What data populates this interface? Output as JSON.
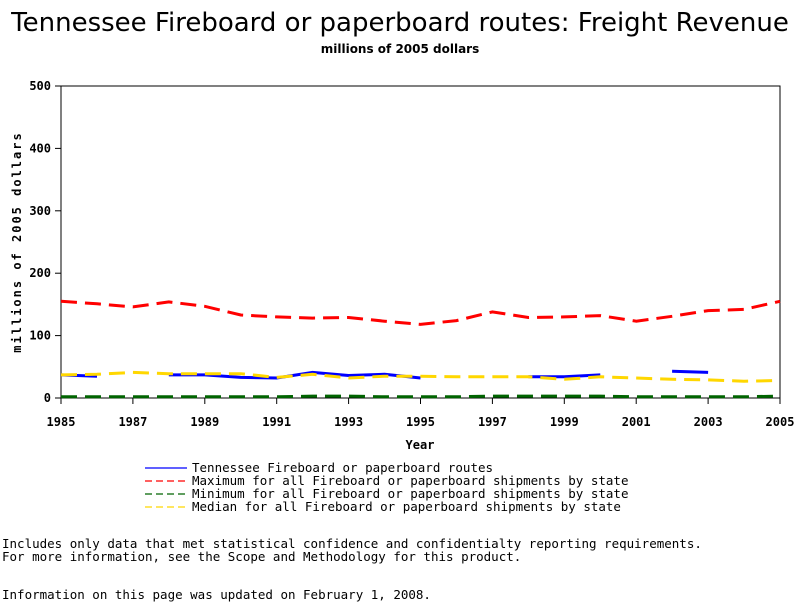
{
  "chart_data": {
    "type": "line",
    "title": "Tennessee Fireboard or paperboard routes: Freight Revenue",
    "subtitle": "millions of 2005 dollars",
    "xlabel": "Year",
    "ylabel": "millions of 2005 dollars",
    "xlim": [
      1985,
      2005
    ],
    "ylim": [
      0,
      500
    ],
    "x_ticks": [
      "1985",
      "1987",
      "1989",
      "1991",
      "1993",
      "1995",
      "1997",
      "1999",
      "2001",
      "2003",
      "2005"
    ],
    "y_ticks": [
      "0",
      "100",
      "200",
      "300",
      "400",
      "500"
    ],
    "grid": false,
    "legend_position": "bottom",
    "series": [
      {
        "name": "Tennessee Fireboard or paperboard routes",
        "color": "#0000ff",
        "style": "solid",
        "points": [
          [
            1985,
            37
          ],
          [
            1986,
            35
          ],
          [
            1988,
            37
          ],
          [
            1989,
            37
          ],
          [
            1990,
            33
          ],
          [
            1991,
            32
          ],
          [
            1992,
            41
          ],
          [
            1993,
            36
          ],
          [
            1994,
            38
          ],
          [
            1995,
            32
          ],
          [
            1998,
            34
          ],
          [
            1999,
            34
          ],
          [
            2000,
            37
          ],
          [
            2002,
            43
          ],
          [
            2003,
            41
          ]
        ]
      },
      {
        "name": "Maximum for all Fireboard or paperboard shipments by state",
        "color": "#ff0000",
        "style": "dashed",
        "points": [
          [
            1985,
            155
          ],
          [
            1986,
            151
          ],
          [
            1987,
            146
          ],
          [
            1988,
            154
          ],
          [
            1989,
            147
          ],
          [
            1990,
            133
          ],
          [
            1991,
            130
          ],
          [
            1992,
            128
          ],
          [
            1993,
            129
          ],
          [
            1994,
            123
          ],
          [
            1995,
            118
          ],
          [
            1996,
            124
          ],
          [
            1997,
            138
          ],
          [
            1998,
            129
          ],
          [
            1999,
            130
          ],
          [
            2000,
            132
          ],
          [
            2001,
            123
          ],
          [
            2002,
            131
          ],
          [
            2003,
            140
          ],
          [
            2004,
            142
          ],
          [
            2005,
            155
          ]
        ]
      },
      {
        "name": "Minimum for all Fireboard or paperboard shipments by state",
        "color": "#006400",
        "style": "dashed",
        "points": [
          [
            1985,
            2
          ],
          [
            1986,
            2
          ],
          [
            1987,
            2
          ],
          [
            1988,
            2
          ],
          [
            1989,
            2
          ],
          [
            1990,
            2
          ],
          [
            1991,
            2
          ],
          [
            1992,
            3
          ],
          [
            1993,
            3
          ],
          [
            1994,
            2
          ],
          [
            1995,
            2
          ],
          [
            1996,
            2
          ],
          [
            1997,
            3
          ],
          [
            1998,
            3
          ],
          [
            1999,
            3
          ],
          [
            2000,
            3
          ],
          [
            2001,
            2
          ],
          [
            2002,
            2
          ],
          [
            2003,
            2
          ],
          [
            2004,
            2
          ],
          [
            2005,
            3
          ]
        ]
      },
      {
        "name": "Median for all Fireboard or paperboard shipments by state",
        "color": "#ffd700",
        "style": "dashed",
        "points": [
          [
            1985,
            37
          ],
          [
            1986,
            38
          ],
          [
            1987,
            41
          ],
          [
            1988,
            39
          ],
          [
            1989,
            39
          ],
          [
            1990,
            39
          ],
          [
            1991,
            33
          ],
          [
            1992,
            38
          ],
          [
            1993,
            32
          ],
          [
            1994,
            35
          ],
          [
            1995,
            35
          ],
          [
            1996,
            34
          ],
          [
            1997,
            34
          ],
          [
            1998,
            34
          ],
          [
            1999,
            30
          ],
          [
            2000,
            34
          ],
          [
            2001,
            32
          ],
          [
            2002,
            30
          ],
          [
            2003,
            29
          ],
          [
            2004,
            27
          ],
          [
            2005,
            28
          ]
        ]
      }
    ]
  },
  "notes": {
    "line1": "Includes only data that met statistical confidence and confidentialty reporting requirements.",
    "line2": "For more information, see the Scope and Methodology for this product.",
    "updated": "Information on this page was updated on February 1, 2008."
  }
}
